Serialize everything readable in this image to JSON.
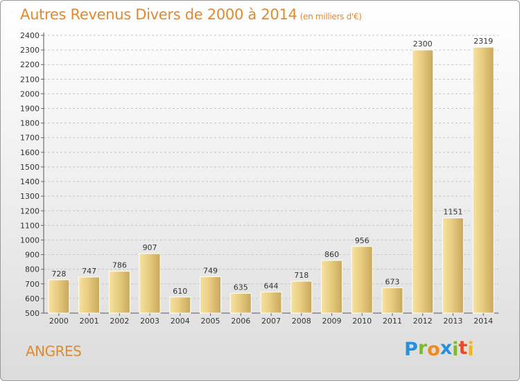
{
  "header": {
    "title": "Autres Revenus Divers de 2000 à 2014",
    "subtitle": "(en milliers d'€)"
  },
  "footer": {
    "place": "ANGRES",
    "brand_letters": [
      {
        "char": "P",
        "color": "#2a8fd6"
      },
      {
        "char": "r",
        "color": "#7dbb2a"
      },
      {
        "char": "o",
        "color": "#f08a1c"
      },
      {
        "char": "x",
        "color": "#2a8fd6"
      },
      {
        "char": "i",
        "color": "#7dbb2a"
      },
      {
        "char": "t",
        "color": "#e84a2a"
      },
      {
        "char": "i",
        "color": "#f0b41c"
      }
    ]
  },
  "chart_data": {
    "type": "bar",
    "title": "Autres Revenus Divers de 2000 à 2014",
    "subtitle": "(en milliers d'€)",
    "xlabel": "",
    "ylabel": "",
    "categories": [
      "2000",
      "2001",
      "2002",
      "2003",
      "2004",
      "2005",
      "2006",
      "2007",
      "2008",
      "2009",
      "2010",
      "2011",
      "2012",
      "2013",
      "2014"
    ],
    "values": [
      728,
      747,
      786,
      907,
      610,
      749,
      635,
      644,
      718,
      860,
      956,
      673,
      2300,
      1151,
      2319
    ],
    "ylim": [
      500,
      2400
    ],
    "yticks": [
      500,
      600,
      700,
      800,
      900,
      1000,
      1100,
      1200,
      1300,
      1400,
      1500,
      1600,
      1700,
      1800,
      1900,
      2000,
      2100,
      2200,
      2300,
      2400
    ],
    "grid": true,
    "bar_color": "#e8cc80",
    "bar_color_light": "#f6e2a2",
    "bar_color_dark": "#c8a85c",
    "title_color": "#e08a2e"
  }
}
